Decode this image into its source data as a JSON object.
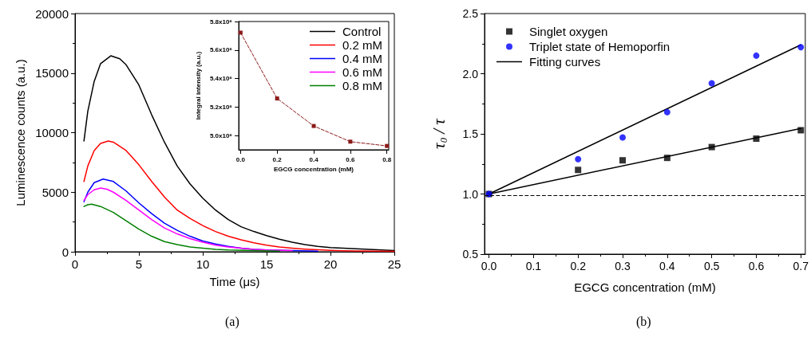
{
  "chart_data": [
    {
      "type": "line",
      "xlabel": "Time (μs)",
      "ylabel": "Luminescence counts (a.u.)",
      "xlim": [
        0,
        25
      ],
      "xticks": [
        0,
        5,
        10,
        15,
        20,
        25
      ],
      "ylim": [
        0,
        20000
      ],
      "yticks": [
        0,
        5000,
        10000,
        15000,
        20000
      ],
      "grid": false,
      "legend": "top right",
      "marker": "none",
      "line_style": "solid",
      "annotations": [
        "(a)"
      ],
      "series": [
        {
          "name": "Control",
          "color": "#000000",
          "x": [
            0.7,
            1,
            1.5,
            2,
            2.8,
            3.5,
            4,
            5,
            6,
            7,
            8,
            9,
            10,
            11,
            12,
            13,
            14,
            15,
            16,
            17,
            18,
            19,
            20,
            21,
            22,
            23,
            24,
            25
          ],
          "values": [
            9300,
            11800,
            14300,
            15800,
            16450,
            16200,
            15700,
            14000,
            11500,
            9200,
            7200,
            5700,
            4500,
            3500,
            2700,
            2100,
            1700,
            1350,
            1050,
            800,
            600,
            450,
            350,
            300,
            250,
            200,
            150,
            100
          ]
        },
        {
          "name": "0.2 mM",
          "color": "#ff0000",
          "x": [
            0.7,
            1,
            1.5,
            2,
            2.6,
            3,
            4,
            5,
            6,
            7,
            8,
            9,
            10,
            11,
            12,
            13,
            14,
            15,
            16,
            17,
            18,
            19,
            20,
            21,
            22,
            25
          ],
          "values": [
            5900,
            7200,
            8500,
            9100,
            9300,
            9200,
            8500,
            7300,
            5900,
            4600,
            3500,
            2800,
            2200,
            1700,
            1300,
            1000,
            750,
            550,
            400,
            300,
            220,
            160,
            110,
            80,
            60,
            30
          ]
        },
        {
          "name": "0.4 mM",
          "color": "#0000ff",
          "x": [
            0.7,
            1,
            1.5,
            2.2,
            3,
            4,
            5,
            6,
            7,
            8,
            9,
            10,
            11,
            12,
            13,
            14,
            15,
            17,
            19
          ],
          "values": [
            4200,
            5000,
            5800,
            6100,
            5900,
            5100,
            4100,
            3200,
            2400,
            1800,
            1300,
            900,
            650,
            450,
            300,
            200,
            150,
            100,
            50
          ]
        },
        {
          "name": "0.6 mM",
          "color": "#ff00ff",
          "x": [
            0.7,
            1,
            1.5,
            2,
            2.5,
            3,
            4,
            5,
            6,
            7,
            8,
            9,
            10,
            11,
            12,
            13,
            14,
            15,
            17
          ],
          "values": [
            4300,
            4800,
            5200,
            5350,
            5250,
            5000,
            4300,
            3500,
            2700,
            2000,
            1500,
            1100,
            800,
            550,
            400,
            300,
            200,
            150,
            100
          ]
        },
        {
          "name": "0.8 mM",
          "color": "#008000",
          "x": [
            0.7,
            1,
            1.3,
            2,
            3,
            4,
            5,
            6,
            7,
            8,
            9,
            10,
            11,
            12,
            14,
            16
          ],
          "values": [
            3800,
            3950,
            4000,
            3800,
            3300,
            2600,
            1900,
            1300,
            850,
            600,
            400,
            300,
            200,
            150,
            100,
            50
          ]
        }
      ]
    },
    {
      "type": "line",
      "xlabel": "EGCG concentration (mM)",
      "ylabel": "Integral intensity (a.u.)",
      "xlim": [
        -0.01,
        0.81
      ],
      "xticks": [
        {
          "value": 0,
          "label": "0.0"
        },
        {
          "value": 0.2,
          "label": "0.2"
        },
        {
          "value": 0.4,
          "label": "0.4"
        },
        {
          "value": 0.6,
          "label": "0.6"
        },
        {
          "value": 0.8,
          "label": "0.8"
        }
      ],
      "ylim": [
        4900000,
        5800000
      ],
      "yticks": [
        {
          "value": 5000000,
          "label": "5.0x10⁶"
        },
        {
          "value": 5200000,
          "label": "5.2x10⁶"
        },
        {
          "value": 5400000,
          "label": "5.4x10⁶"
        },
        {
          "value": 5600000,
          "label": "5.6x10⁶"
        },
        {
          "value": 5800000,
          "label": "5.8x10⁶"
        }
      ],
      "grid": false,
      "marker": "square",
      "line_style": "dashed",
      "x": [
        0,
        0.2,
        0.4,
        0.6,
        0.8
      ],
      "series": [
        {
          "color": "#8b1a1a",
          "values": [
            5722000,
            5260000,
            5067000,
            4957000,
            4927000
          ]
        }
      ]
    },
    {
      "type": "scatter",
      "xlabel": "EGCG concentration (mM)",
      "ylabel": "τ$_{0}$ / τ",
      "xlim": [
        -0.01,
        0.71
      ],
      "xticks": [
        {
          "value": 0,
          "label": "0.0"
        },
        {
          "value": 0.1,
          "label": "0.1"
        },
        {
          "value": 0.2,
          "label": "0.2"
        },
        {
          "value": 0.3,
          "label": "0.3"
        },
        {
          "value": 0.4,
          "label": "0.4"
        },
        {
          "value": 0.5,
          "label": "0.5"
        },
        {
          "value": 0.6,
          "label": "0.6"
        },
        {
          "value": 0.7,
          "label": "0.7"
        }
      ],
      "ylim": [
        0.5,
        2.5
      ],
      "yticks": [
        {
          "value": 0.5,
          "label": "0.5"
        },
        {
          "value": 1,
          "label": "1.0"
        },
        {
          "value": 1.5,
          "label": "1.5"
        },
        {
          "value": 2,
          "label": "2.0"
        },
        {
          "value": 2.5,
          "label": "2.5"
        }
      ],
      "grid": false,
      "legend": "top left",
      "annotations": [
        "(b)"
      ],
      "ref_lines": [
        {
          "axis": "y",
          "value": 0.99,
          "color": "#000000",
          "line_style": "dashed"
        }
      ],
      "series": [
        {
          "name": "Singlet oxygen",
          "color": "#000000",
          "marker": "square",
          "x": [
            0,
            0.2,
            0.3,
            0.4,
            0.5,
            0.6,
            0.7
          ],
          "values": [
            1.0,
            1.2,
            1.28,
            1.3,
            1.39,
            1.46,
            1.53
          ]
        },
        {
          "name": "Triplet state of Hemoporfin",
          "color": "#0000ff",
          "marker": "circle",
          "x": [
            0,
            0.2,
            0.3,
            0.4,
            0.5,
            0.6,
            0.7
          ],
          "values": [
            1.0,
            1.29,
            1.47,
            1.68,
            1.92,
            2.15,
            2.22
          ]
        },
        {
          "name": "Fitting curves",
          "type": "line",
          "color": "#000000",
          "marker": "none",
          "line_style": "solid",
          "x": [
            0,
            0.7
          ],
          "values": [
            1.0,
            2.24
          ]
        },
        {
          "type": "line",
          "color": "#000000",
          "marker": "none",
          "line_style": "solid",
          "x": [
            0,
            0.7
          ],
          "values": [
            1.0,
            1.545
          ]
        }
      ]
    }
  ]
}
